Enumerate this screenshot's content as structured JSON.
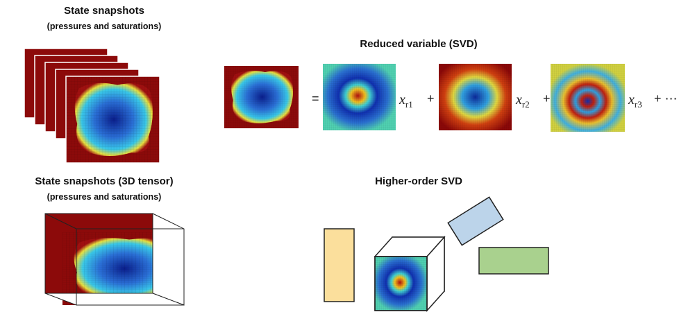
{
  "top_left": {
    "title": "State snapshots",
    "subtitle": "(pressures and saturations)"
  },
  "svd": {
    "title": "Reduced variable (SVD)",
    "equals": "=",
    "terms": [
      {
        "symbol": "x",
        "subscript": "r1",
        "op": "+"
      },
      {
        "symbol": "x",
        "subscript": "r2",
        "op": "+"
      },
      {
        "symbol": "x",
        "subscript": "r3",
        "op": "+ ⋯"
      }
    ]
  },
  "bottom_left": {
    "title": "State snapshots (3D tensor)",
    "subtitle": "(pressures and saturations)"
  },
  "hosvd": {
    "title": "Higher-order SVD"
  }
}
